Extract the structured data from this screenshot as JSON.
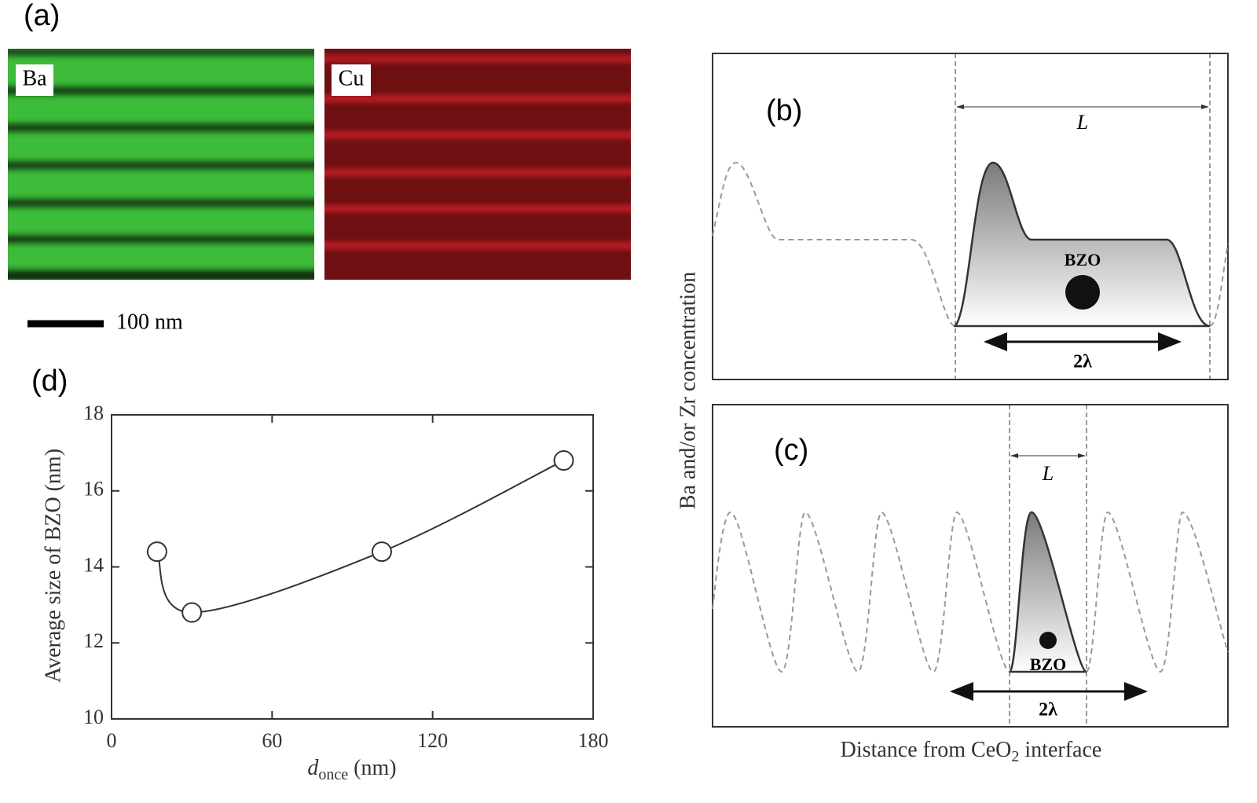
{
  "panels": {
    "a": {
      "label": "(a)",
      "map_labels": [
        "Ba",
        "Cu"
      ],
      "scale_bar": "100 nm"
    },
    "b": {
      "label": "(b)",
      "length": "L",
      "particle": "BZO",
      "width": "2λ"
    },
    "c": {
      "label": "(c)",
      "length": "L",
      "particle": "BZO",
      "width": "2λ"
    },
    "bc_y_label": "Ba and/or Zr concentration",
    "bc_x_label": {
      "before": "Distance from CeO",
      "subscript": "2",
      "after": " interface"
    },
    "d": {
      "label": "(d)"
    }
  },
  "chart_data": {
    "type": "line",
    "x": [
      17,
      30,
      101,
      169
    ],
    "values": [
      14.4,
      12.8,
      14.4,
      16.8
    ],
    "color": "#333333",
    "xlim": [
      0,
      180
    ],
    "xticks": [
      0,
      60,
      120,
      180
    ],
    "ylim": [
      10,
      18
    ],
    "yticks": [
      10,
      12,
      14,
      16,
      18
    ],
    "y_label": "Average size of  BZO (nm)",
    "x_label": {
      "symbol": "d",
      "subscript": "once",
      "unit": " (nm)"
    }
  }
}
